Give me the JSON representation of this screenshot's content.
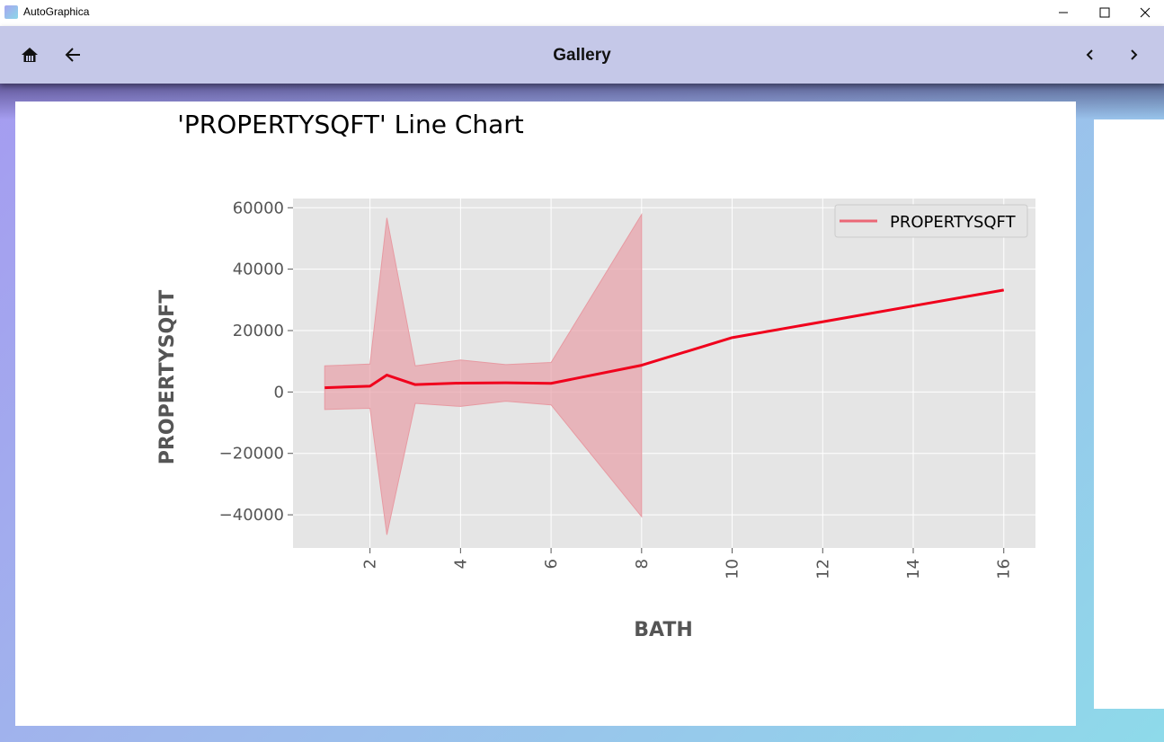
{
  "window": {
    "title": "AutoGraphica",
    "minimize_icon": "minimize-icon",
    "maximize_icon": "maximize-icon",
    "close_icon": "close-icon"
  },
  "appbar": {
    "title": "Gallery",
    "home_icon": "home-icon",
    "back_icon": "arrow-left-icon",
    "prev_icon": "chevron-left-icon",
    "next_icon": "chevron-right-icon",
    "color": "#c5c8e8"
  },
  "chart_data": {
    "type": "line",
    "title": "'PROPERTYSQFT'  Line Chart",
    "xlabel": "BATH",
    "ylabel": "PROPERTYSQFT",
    "xlim": [
      0.3,
      16.7
    ],
    "ylim": [
      -50800,
      63000
    ],
    "xticks": [
      2,
      4,
      6,
      8,
      10,
      12,
      14,
      16
    ],
    "xtick_rotation": -90,
    "yticks": [
      60000,
      40000,
      20000,
      0,
      -20000,
      -40000
    ],
    "ytick_labels": [
      "60000",
      "40000",
      "20000",
      "0",
      "−20000",
      "−40000"
    ],
    "grid": true,
    "legend": "top-right",
    "background": "#e5e5e5",
    "series": [
      {
        "name": "PROPERTYSQFT",
        "color": "#f0001c",
        "band_color": "#e8a0a8",
        "x": [
          1,
          2,
          2.373,
          3,
          4,
          5,
          6,
          8,
          10,
          16
        ],
        "y": [
          1400,
          1900,
          5500,
          2400,
          2900,
          3000,
          2800,
          8700,
          17700,
          33200
        ],
        "lower": [
          -5700,
          -5300,
          -46500,
          -3700,
          -4700,
          -3000,
          -4200,
          -40600,
          null,
          null
        ],
        "upper": [
          8500,
          9100,
          56700,
          8500,
          10400,
          8900,
          9600,
          57800,
          null,
          null
        ]
      }
    ]
  }
}
